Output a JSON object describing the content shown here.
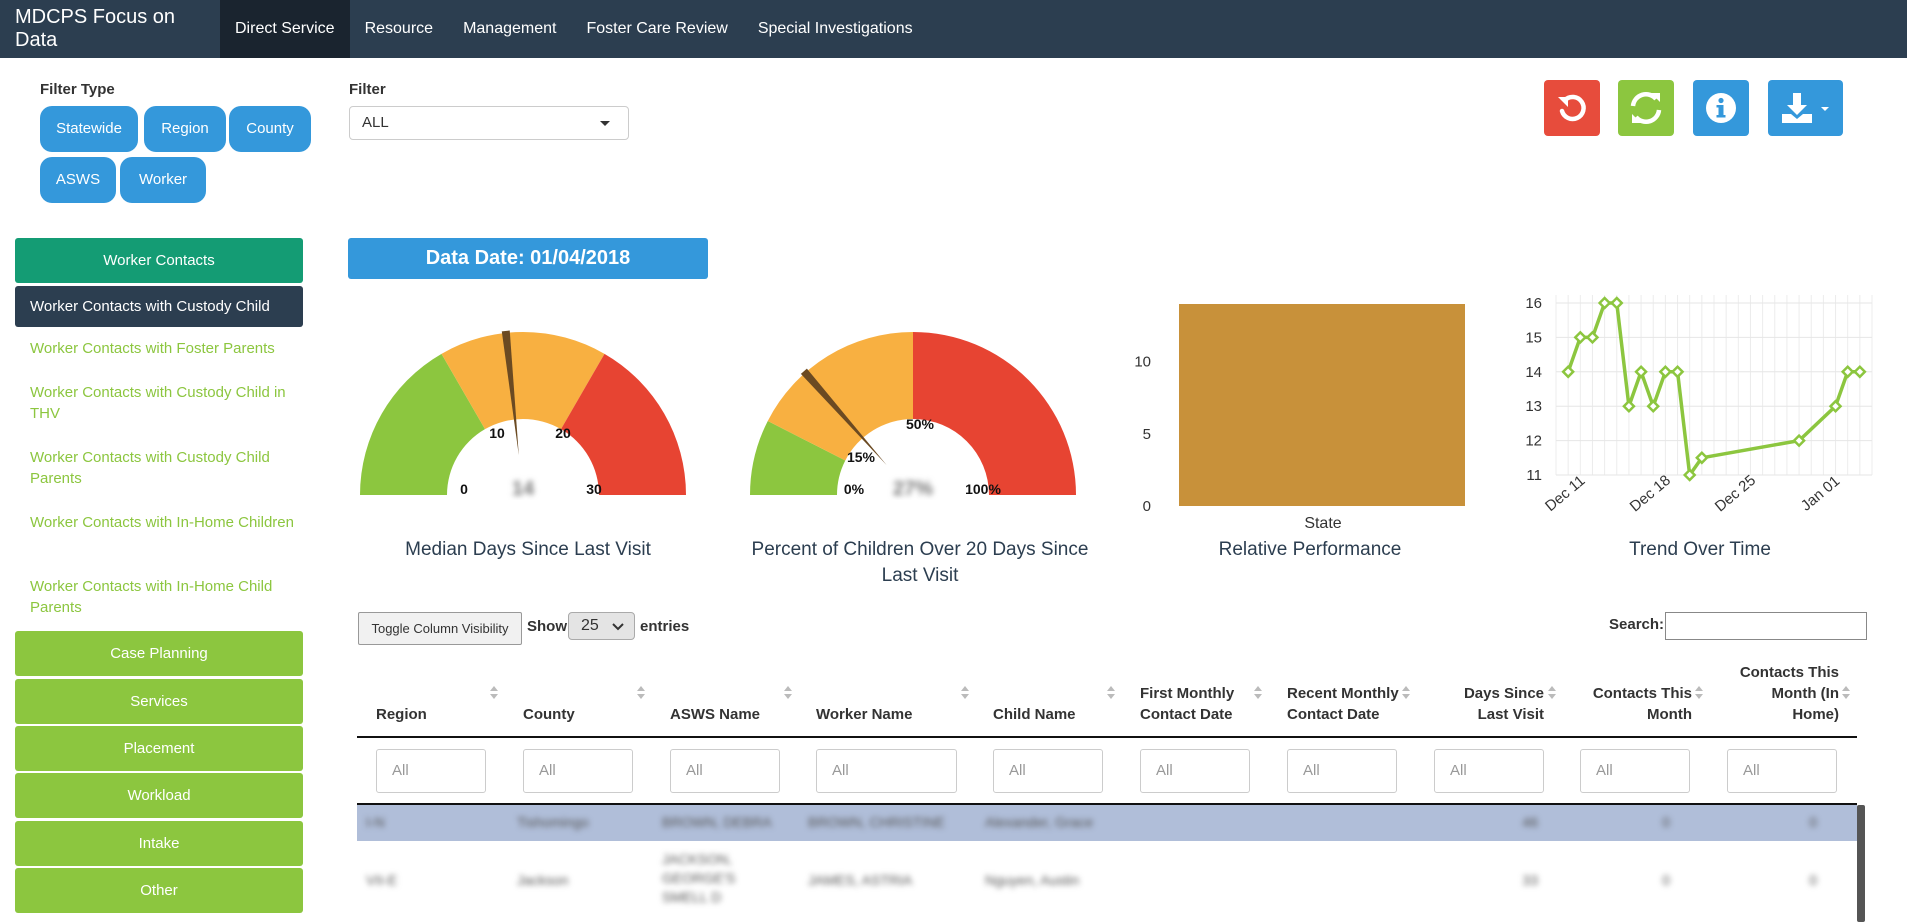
{
  "nav": {
    "brand": "MDCPS Focus on Data",
    "items": [
      "Direct Service",
      "Resource",
      "Management",
      "Foster Care Review",
      "Special Investigations"
    ]
  },
  "filters": {
    "type_label": "Filter Type",
    "types": [
      "Statewide",
      "Region",
      "County",
      "ASWS",
      "Worker"
    ],
    "filter_label": "Filter",
    "filter_value": "ALL"
  },
  "toolbar": {
    "icons": [
      "undo-icon",
      "refresh-icon",
      "info-icon",
      "download-icon"
    ],
    "colors": [
      "#e74c3c",
      "#8cc63f",
      "#3498db",
      "#3498db"
    ]
  },
  "sidebar": {
    "header": "Worker Contacts",
    "active": "Worker Contacts with Custody Child",
    "links": [
      "Worker Contacts with Foster Parents",
      "Worker Contacts with Custody Child in THV",
      "Worker Contacts with Custody Child Parents",
      "Worker Contacts with In-Home Children",
      "Worker Contacts with In-Home Child Parents"
    ],
    "sections": [
      "Case Planning",
      "Services",
      "Placement",
      "Workload",
      "Intake",
      "Other"
    ]
  },
  "data_date": "Data Date: 01/04/2018",
  "chart_data": [
    {
      "type": "gauge",
      "title": "Median Days Since Last Visit",
      "min": 0,
      "max": 30,
      "value": 14,
      "ticks": [
        "0",
        "10",
        "20",
        "30"
      ],
      "value_label": "14",
      "bands": [
        {
          "from": 0,
          "to": 10,
          "color": "#8cc63f"
        },
        {
          "from": 10,
          "to": 20,
          "color": "#f8b041"
        },
        {
          "from": 20,
          "to": 30,
          "color": "#e74432"
        }
      ]
    },
    {
      "type": "gauge",
      "title": "Percent of Children Over 20 Days Since Last Visit",
      "min": 0,
      "max": 100,
      "value": 27,
      "ticks": [
        "0%",
        "15%",
        "50%",
        "100%"
      ],
      "value_label": "27%",
      "bands": [
        {
          "from": 0,
          "to": 15,
          "color": "#8cc63f"
        },
        {
          "from": 15,
          "to": 50,
          "color": "#f8b041"
        },
        {
          "from": 50,
          "to": 100,
          "color": "#e74432"
        }
      ]
    },
    {
      "type": "bar",
      "title": "Relative Performance",
      "categories": [
        "State"
      ],
      "values": [
        14
      ],
      "ylim": [
        0,
        14
      ],
      "yticks": [
        "0",
        "5",
        "10"
      ],
      "color": "#c8913a"
    },
    {
      "type": "line",
      "title": "Trend Over Time",
      "x": [
        "2017-12-11",
        "2017-12-12",
        "2017-12-13",
        "2017-12-14",
        "2017-12-15",
        "2017-12-16",
        "2017-12-17",
        "2017-12-18",
        "2017-12-19",
        "2017-12-20",
        "2017-12-21",
        "2017-12-22",
        "2017-12-30",
        "2018-01-02",
        "2018-01-03",
        "2018-01-04"
      ],
      "values": [
        14,
        15,
        15,
        16,
        16,
        13,
        14,
        13,
        14,
        14,
        11,
        11.5,
        12,
        13,
        14,
        14
      ],
      "ylim": [
        11,
        16
      ],
      "yticks": [
        "11",
        "12",
        "13",
        "14",
        "15",
        "16"
      ],
      "xticks": [
        "Dec 11",
        "Dec 18",
        "Dec 25",
        "Jan 01"
      ],
      "color": "#8cc63f"
    }
  ],
  "table_controls": {
    "toggle": "Toggle Column Visibility",
    "show": "Show",
    "length": "25",
    "entries": "entries",
    "search": "Search:"
  },
  "table": {
    "columns": [
      "Region",
      "County",
      "ASWS Name",
      "Worker Name",
      "Child Name",
      "First Monthly Contact Date",
      "Recent Monthly Contact Date",
      "Days Since Last Visit",
      "Contacts This Month",
      "Contacts This Month (In Home)"
    ],
    "filter_placeholder": "All",
    "rows": [
      [
        "I-N",
        "Tishomingo",
        "BROWN, DEBRA",
        "BROWN, CHRISTINE",
        "Alexander, Grace",
        "",
        "",
        "46",
        "0",
        "0"
      ],
      [
        "VII-E",
        "Jackson",
        "JACKSON, GEORGE'S SMELL D",
        "JAMES, ASTRIA",
        "Nguyen, Austin",
        "",
        "",
        "33",
        "0",
        "0"
      ]
    ]
  }
}
